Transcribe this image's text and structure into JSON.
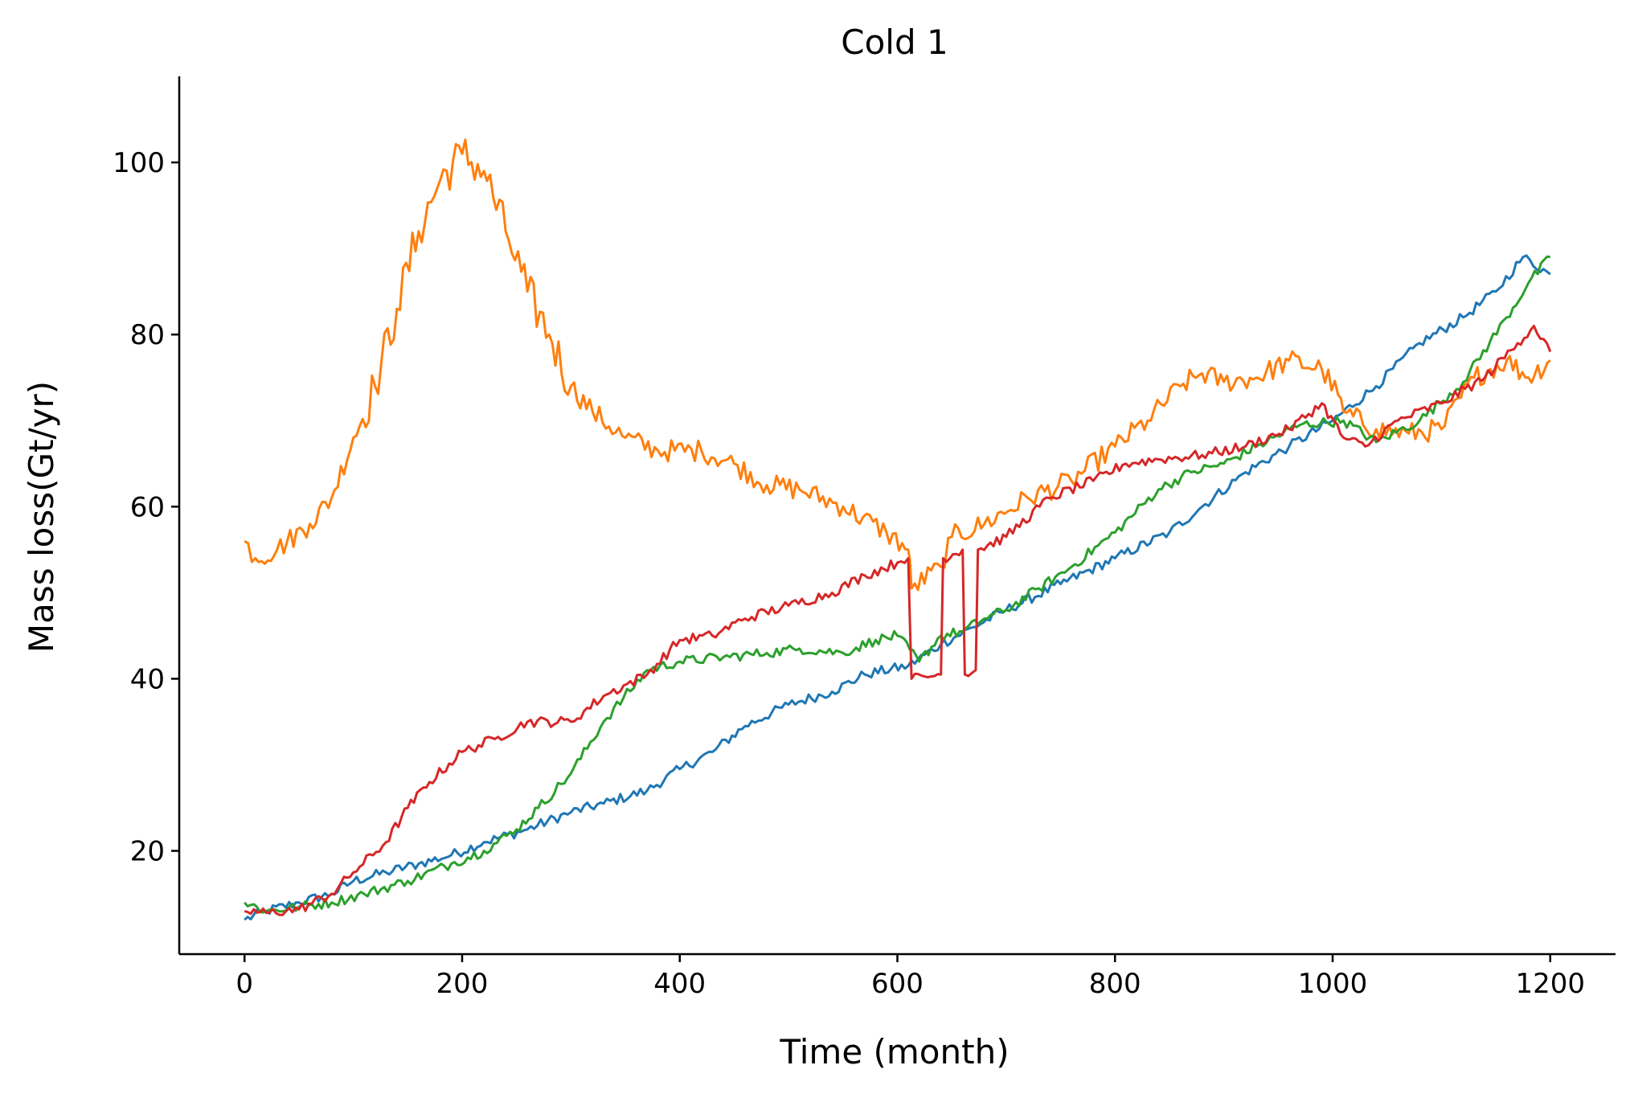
{
  "chart_data": {
    "type": "line",
    "title": "Cold 1",
    "xlabel": "Time (month)",
    "ylabel": "Mass loss(Gt/yr)",
    "xlim": [
      -60,
      1260
    ],
    "ylim": [
      8,
      110
    ],
    "xticks": [
      0,
      200,
      400,
      600,
      800,
      1000,
      1200
    ],
    "yticks": [
      20,
      40,
      60,
      80,
      100
    ],
    "grid": false,
    "legend": "none",
    "series": [
      {
        "color": "#1f77b4",
        "points": [
          [
            0,
            12
          ],
          [
            20,
            13
          ],
          [
            50,
            14
          ],
          [
            80,
            15
          ],
          [
            100,
            16.5
          ],
          [
            130,
            17.5
          ],
          [
            160,
            18.5
          ],
          [
            190,
            19.5
          ],
          [
            220,
            21
          ],
          [
            260,
            22.5
          ],
          [
            300,
            24.5
          ],
          [
            330,
            25.5
          ],
          [
            370,
            27
          ],
          [
            400,
            29.5
          ],
          [
            430,
            31.5
          ],
          [
            460,
            34.5
          ],
          [
            500,
            37
          ],
          [
            540,
            38.5
          ],
          [
            570,
            40.5
          ],
          [
            610,
            41.5
          ],
          [
            640,
            44
          ],
          [
            670,
            46
          ],
          [
            700,
            48
          ],
          [
            750,
            51
          ],
          [
            800,
            54
          ],
          [
            850,
            57
          ],
          [
            880,
            60
          ],
          [
            920,
            64
          ],
          [
            960,
            67
          ],
          [
            1000,
            70
          ],
          [
            1040,
            74
          ],
          [
            1080,
            79
          ],
          [
            1120,
            82
          ],
          [
            1150,
            85
          ],
          [
            1175,
            89
          ],
          [
            1200,
            87
          ]
        ]
      },
      {
        "color": "#ff7f0e",
        "points": [
          [
            0,
            56
          ],
          [
            10,
            54
          ],
          [
            30,
            55
          ],
          [
            60,
            58
          ],
          [
            80,
            61
          ],
          [
            100,
            68
          ],
          [
            120,
            74
          ],
          [
            140,
            83
          ],
          [
            160,
            92
          ],
          [
            180,
            98
          ],
          [
            200,
            101
          ],
          [
            220,
            99
          ],
          [
            240,
            92
          ],
          [
            260,
            85
          ],
          [
            280,
            80
          ],
          [
            300,
            74
          ],
          [
            320,
            71
          ],
          [
            350,
            68
          ],
          [
            380,
            66.5
          ],
          [
            420,
            66.5
          ],
          [
            450,
            65
          ],
          [
            480,
            62.5
          ],
          [
            510,
            62
          ],
          [
            550,
            60
          ],
          [
            590,
            57
          ],
          [
            610,
            55
          ],
          [
            613,
            50.5
          ],
          [
            640,
            53
          ],
          [
            650,
            56.5
          ],
          [
            680,
            58
          ],
          [
            720,
            61
          ],
          [
            760,
            63
          ],
          [
            800,
            67
          ],
          [
            830,
            70
          ],
          [
            860,
            74
          ],
          [
            880,
            75.5
          ],
          [
            900,
            74.5
          ],
          [
            930,
            75
          ],
          [
            960,
            77
          ],
          [
            990,
            76
          ],
          [
            1005,
            73
          ],
          [
            1010,
            71
          ],
          [
            1040,
            69
          ],
          [
            1070,
            68.5
          ],
          [
            1100,
            69
          ],
          [
            1130,
            75
          ],
          [
            1160,
            77
          ],
          [
            1180,
            75
          ],
          [
            1200,
            77
          ]
        ]
      },
      {
        "color": "#2ca02c",
        "points": [
          [
            0,
            14
          ],
          [
            20,
            13
          ],
          [
            50,
            13.5
          ],
          [
            80,
            14
          ],
          [
            110,
            15
          ],
          [
            150,
            16.5
          ],
          [
            190,
            18.5
          ],
          [
            220,
            20
          ],
          [
            250,
            22.5
          ],
          [
            270,
            25
          ],
          [
            300,
            29
          ],
          [
            330,
            35
          ],
          [
            370,
            41
          ],
          [
            400,
            42
          ],
          [
            440,
            42.5
          ],
          [
            480,
            43
          ],
          [
            510,
            43.5
          ],
          [
            550,
            43
          ],
          [
            580,
            44.5
          ],
          [
            600,
            45
          ],
          [
            620,
            42
          ],
          [
            640,
            45
          ],
          [
            660,
            45.5
          ],
          [
            680,
            47
          ],
          [
            700,
            48
          ],
          [
            730,
            50.5
          ],
          [
            760,
            53
          ],
          [
            800,
            57
          ],
          [
            840,
            62
          ],
          [
            870,
            64
          ],
          [
            900,
            65
          ],
          [
            930,
            67
          ],
          [
            970,
            69.5
          ],
          [
            1010,
            70
          ],
          [
            1040,
            67.5
          ],
          [
            1080,
            70
          ],
          [
            1120,
            74.5
          ],
          [
            1160,
            82
          ],
          [
            1180,
            86
          ],
          [
            1200,
            89
          ]
        ]
      },
      {
        "color": "#d62728",
        "points": [
          [
            0,
            13
          ],
          [
            20,
            12.8
          ],
          [
            50,
            13.2
          ],
          [
            80,
            15
          ],
          [
            100,
            17.5
          ],
          [
            130,
            21
          ],
          [
            150,
            25
          ],
          [
            170,
            28
          ],
          [
            200,
            31.5
          ],
          [
            230,
            33
          ],
          [
            260,
            35
          ],
          [
            300,
            35
          ],
          [
            330,
            38
          ],
          [
            370,
            40.5
          ],
          [
            400,
            44.5
          ],
          [
            430,
            45
          ],
          [
            460,
            47
          ],
          [
            500,
            48.5
          ],
          [
            540,
            50
          ],
          [
            570,
            52
          ],
          [
            600,
            53.5
          ],
          [
            610,
            54
          ],
          [
            613,
            40
          ],
          [
            640,
            40.5
          ],
          [
            642,
            54
          ],
          [
            660,
            55
          ],
          [
            662,
            40.5
          ],
          [
            672,
            41
          ],
          [
            674,
            55
          ],
          [
            700,
            56.5
          ],
          [
            740,
            61
          ],
          [
            780,
            63
          ],
          [
            810,
            65
          ],
          [
            840,
            65.5
          ],
          [
            880,
            66
          ],
          [
            920,
            67
          ],
          [
            960,
            69
          ],
          [
            990,
            72
          ],
          [
            1010,
            68
          ],
          [
            1030,
            67
          ],
          [
            1060,
            70
          ],
          [
            1100,
            72
          ],
          [
            1140,
            75
          ],
          [
            1170,
            79
          ],
          [
            1185,
            81
          ],
          [
            1200,
            78
          ]
        ]
      }
    ]
  }
}
